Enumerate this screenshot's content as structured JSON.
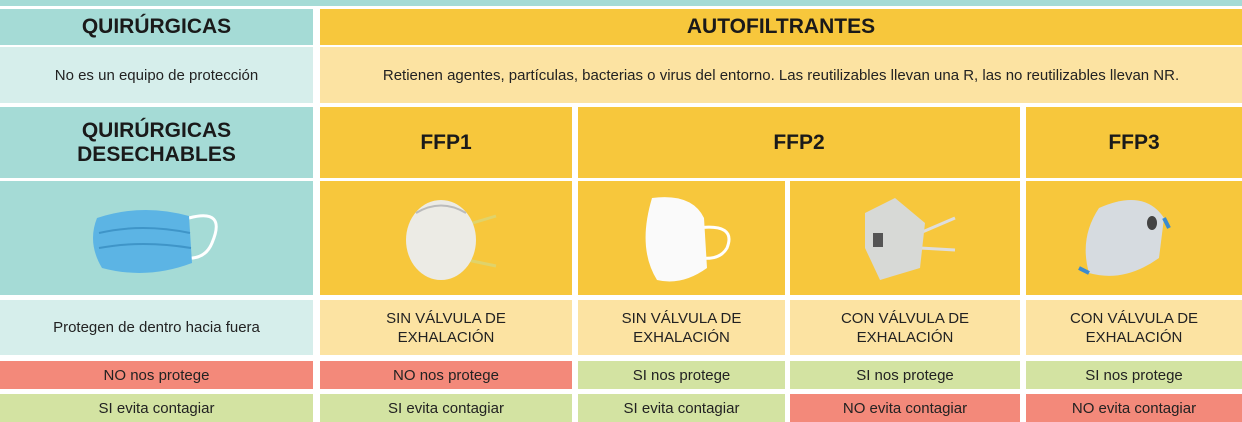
{
  "table": {
    "header": [
      "QUIRÚRGICAS",
      "AUTOFILTRANTES"
    ],
    "descriptions": [
      "No es un equipo de protección",
      "Retienen agentes, partículas, bacterias o virus del entorno. Las reutilizables llevan una R, las no reutilizables llevan NR."
    ],
    "types": [
      "QUIRÚRGICAS DESECHABLES",
      "FFP1",
      "FFP2",
      "FFP3"
    ],
    "valves": [
      "Protegen de dentro hacia fuera",
      "SIN VÁLVULA DE EXHALACIÓN",
      "SIN VÁLVULA DE EXHALACIÓN",
      "CON VÁLVULA DE EXHALACIÓN",
      "CON VÁLVULA DE EXHALACIÓN"
    ],
    "protection": [
      "NO nos protege",
      "NO nos protege",
      "SI nos protege",
      "SI nos protege",
      "SI nos protege"
    ],
    "contagion": [
      "SI evita contagiar",
      "SI evita contagiar",
      "SI evita contagiar",
      "NO evita contagiar",
      "NO evita contagiar"
    ]
  }
}
